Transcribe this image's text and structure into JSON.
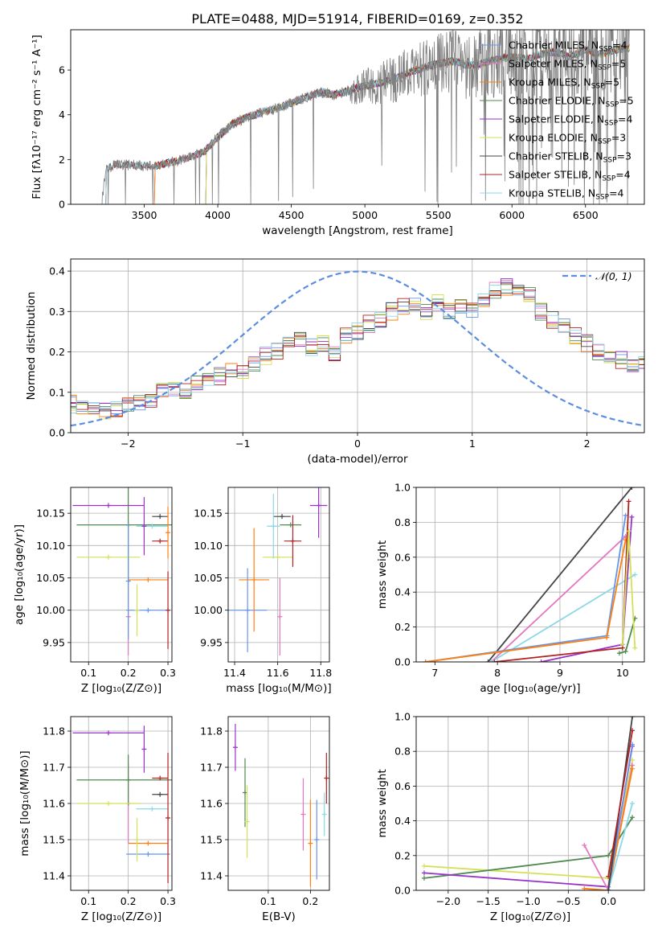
{
  "chart_data": [
    {
      "id": "spectrum",
      "type": "line",
      "title": "PLATE=0488, MJD=51914, FIBERID=0169, z=0.352",
      "xlabel": "wavelength [Angstrom, rest frame]",
      "ylabel": "Flux [fλ10⁻¹⁷ erg cm⁻² s⁻¹ A⁻¹]",
      "xlim": [
        3000,
        6900
      ],
      "ylim": [
        0,
        7.8
      ],
      "xticks": [
        "3500",
        "4000",
        "4500",
        "5000",
        "5500",
        "6000",
        "6500"
      ],
      "yticks": [
        "0",
        "2",
        "4",
        "6"
      ],
      "xtick_values": [
        3500,
        4000,
        4500,
        5000,
        5500,
        6000,
        6500
      ],
      "ytick_values": [
        0,
        2,
        4,
        6
      ],
      "grid": false,
      "legend_position": "top-right",
      "data_color": "#808080",
      "data_x": [
        3210,
        3240,
        3300,
        3400,
        3500,
        3600,
        3700,
        3800,
        3900,
        4000,
        4100,
        4200,
        4300,
        4400,
        4500,
        4600,
        4700,
        4800,
        4900,
        5000,
        5100,
        5200,
        5300,
        5400,
        5500,
        5600,
        5700,
        5800,
        5900,
        6000,
        6100,
        6200,
        6300,
        6400,
        6500,
        6600,
        6700,
        6800
      ],
      "data_y": [
        0.0,
        1.55,
        1.8,
        1.75,
        1.7,
        1.75,
        1.9,
        2.1,
        2.3,
        3.0,
        3.6,
        3.9,
        4.1,
        4.3,
        4.5,
        4.8,
        5.0,
        4.9,
        5.1,
        5.3,
        5.4,
        5.6,
        5.9,
        6.1,
        6.3,
        6.4,
        6.2,
        6.3,
        6.5,
        6.6,
        6.5,
        6.7,
        6.8,
        6.6,
        6.9,
        6.7,
        6.9,
        7.0
      ],
      "series": [
        {
          "name": "Chabrier MILES, N_SSP=4",
          "label": "Chabrier MILES, N",
          "sub": "SSP",
          "count": "=4",
          "color": "#6495ed",
          "x_start": 3550
        },
        {
          "name": "Salpeter MILES, N_SSP=5",
          "label": "Salpeter MILES, N",
          "sub": "SSP",
          "count": "=5",
          "color": "#e377c2",
          "x_start": 3550
        },
        {
          "name": "Kroupa MILES, N_SSP=5",
          "label": "Kroupa MILES, N",
          "sub": "SSP",
          "count": "=5",
          "color": "#ff7f0e",
          "x_start": 3550
        },
        {
          "name": "Chabrier ELODIE, N_SSP=5",
          "label": "Chabrier ELODIE, N",
          "sub": "SSP",
          "count": "=5",
          "color": "#4f8a4f",
          "x_start": 3900
        },
        {
          "name": "Salpeter ELODIE, N_SSP=4",
          "label": "Salpeter ELODIE, N",
          "sub": "SSP",
          "count": "=4",
          "color": "#9932cc",
          "x_start": 3900
        },
        {
          "name": "Kroupa ELODIE, N_SSP=3",
          "label": "Kroupa ELODIE, N",
          "sub": "SSP",
          "count": "=3",
          "color": "#d4e157",
          "x_start": 3900
        },
        {
          "name": "Chabrier STELIB, N_SSP=3",
          "label": "Chabrier STELIB, N",
          "sub": "SSP",
          "count": "=3",
          "color": "#444444",
          "x_start": 3220
        },
        {
          "name": "Salpeter STELIB, N_SSP=4",
          "label": "Salpeter STELIB, N",
          "sub": "SSP",
          "count": "=4",
          "color": "#b22222",
          "x_start": 3220
        },
        {
          "name": "Kroupa STELIB, N_SSP=4",
          "label": "Kroupa STELIB, N",
          "sub": "SSP",
          "count": "=4",
          "color": "#8ad8e8",
          "x_start": 3220
        }
      ]
    },
    {
      "id": "residuals",
      "type": "bar",
      "xlabel": "(data-model)/error",
      "ylabel": "Normed distribution",
      "xlim": [
        -2.5,
        2.5
      ],
      "ylim": [
        0,
        0.43
      ],
      "xticks": [
        "−2",
        "−1",
        "0",
        "1",
        "2"
      ],
      "xtick_values": [
        -2,
        -1,
        0,
        1,
        2
      ],
      "yticks": [
        "0.0",
        "0.1",
        "0.2",
        "0.3",
        "0.4"
      ],
      "ytick_values": [
        0,
        0.1,
        0.2,
        0.3,
        0.4
      ],
      "grid": true,
      "legend_position": "top-right",
      "curve": {
        "name": "N(0,1)",
        "label": "𝒩(0, 1)",
        "color": "#5b8ee0",
        "mean": 0,
        "sigma": 1
      },
      "bin_width": 0.1,
      "bin_start": -2.5,
      "hist_values": [
        0.07,
        0.065,
        0.06,
        0.055,
        0.06,
        0.065,
        0.07,
        0.08,
        0.1,
        0.11,
        0.1,
        0.12,
        0.13,
        0.14,
        0.15,
        0.15,
        0.17,
        0.19,
        0.2,
        0.22,
        0.23,
        0.21,
        0.22,
        0.2,
        0.24,
        0.25,
        0.27,
        0.28,
        0.3,
        0.31,
        0.32,
        0.3,
        0.32,
        0.3,
        0.31,
        0.3,
        0.33,
        0.35,
        0.36,
        0.35,
        0.34,
        0.3,
        0.28,
        0.26,
        0.24,
        0.22,
        0.2,
        0.19,
        0.18,
        0.17,
        0.17,
        0.16,
        0.15,
        0.14,
        0.13,
        0.11,
        0.1,
        0.1,
        0.09,
        0.08
      ],
      "hist_series_colors": [
        "#6495ed",
        "#e377c2",
        "#ff7f0e",
        "#4f8a4f",
        "#9932cc",
        "#d4e157",
        "#444444",
        "#b22222",
        "#8ad8e8"
      ]
    },
    {
      "id": "age_vs_Z",
      "type": "scatter",
      "xlabel": "Z [log₁₀(Z/Z⊙)]",
      "ylabel": "age  [log₁₀(age/yr)]",
      "xlim": [
        0.055,
        0.31
      ],
      "ylim": [
        9.92,
        10.19
      ],
      "xticks": [
        "0.1",
        "0.2",
        "0.3"
      ],
      "xtick_values": [
        0.1,
        0.2,
        0.3
      ],
      "yticks": [
        "9.95",
        "10.00",
        "10.05",
        "10.10",
        "10.15"
      ],
      "ytick_values": [
        9.95,
        10.0,
        10.05,
        10.1,
        10.15
      ],
      "grid": true,
      "points": [
        {
          "x": 0.25,
          "y": 10.0,
          "xerr": 0.055,
          "yerr": 0.0,
          "color": "#6495ed"
        },
        {
          "x": 0.2,
          "y": 9.99,
          "xerr": 0.0,
          "yerr": 0.06,
          "color": "#e377c2"
        },
        {
          "x": 0.25,
          "y": 10.047,
          "xerr": 0.05,
          "yerr": 0.0,
          "color": "#ff7f0e"
        },
        {
          "x": 0.2,
          "y": 10.132,
          "xerr": 0.13,
          "yerr": 0.09,
          "color": "#4f8a4f"
        },
        {
          "x": 0.15,
          "y": 10.162,
          "xerr": 0.09,
          "yerr": 0.0,
          "color": "#9932cc"
        },
        {
          "x": 0.15,
          "y": 10.082,
          "xerr": 0.08,
          "yerr": 0.0,
          "color": "#d4e157"
        },
        {
          "x": 0.28,
          "y": 10.145,
          "xerr": 0.02,
          "yerr": 0.0,
          "color": "#444444"
        },
        {
          "x": 0.28,
          "y": 10.107,
          "xerr": 0.02,
          "yerr": 0.0,
          "color": "#b22222"
        },
        {
          "x": 0.26,
          "y": 10.13,
          "xerr": 0.04,
          "yerr": 0.0,
          "color": "#8ad8e8"
        },
        {
          "x": 0.2,
          "y": 10.045,
          "xerr": 0.0,
          "yerr": 0.09,
          "color": "#6495ed"
        },
        {
          "x": 0.222,
          "y": 10.0,
          "xerr": 0.0,
          "yerr": 0.04,
          "color": "#d4e157"
        },
        {
          "x": 0.24,
          "y": 10.13,
          "xerr": 0.0,
          "yerr": 0.045,
          "color": "#9932cc"
        },
        {
          "x": 0.3,
          "y": 10.0,
          "xerr": 0.0,
          "yerr": 0.06,
          "color": "#b22222"
        },
        {
          "x": 0.3,
          "y": 10.12,
          "xerr": 0.0,
          "yerr": 0.04,
          "color": "#ff7f0e"
        }
      ]
    },
    {
      "id": "age_vs_mass",
      "type": "scatter",
      "xlabel": "mass [log₁₀(M/M⊙)]",
      "ylabel": "",
      "xlim": [
        11.37,
        11.84
      ],
      "ylim": [
        9.92,
        10.19
      ],
      "xticks": [
        "11.4",
        "11.6",
        "11.8"
      ],
      "xtick_values": [
        11.4,
        11.6,
        11.8
      ],
      "yticks": [
        "9.95",
        "10.00",
        "10.05",
        "10.10",
        "10.15"
      ],
      "ytick_values": [
        9.95,
        10.0,
        10.05,
        10.1,
        10.15
      ],
      "grid": true,
      "points": [
        {
          "x": 11.46,
          "y": 10.0,
          "xerr": 0.09,
          "yerr": 0.065,
          "color": "#6495ed"
        },
        {
          "x": 11.61,
          "y": 9.99,
          "xerr": 0.0,
          "yerr": 0.06,
          "color": "#e377c2"
        },
        {
          "x": 11.49,
          "y": 10.047,
          "xerr": 0.07,
          "yerr": 0.08,
          "color": "#ff7f0e"
        },
        {
          "x": 11.66,
          "y": 10.132,
          "xerr": 0.05,
          "yerr": 0.0,
          "color": "#4f8a4f"
        },
        {
          "x": 11.79,
          "y": 10.162,
          "xerr": 0.04,
          "yerr": 0.05,
          "color": "#9932cc"
        },
        {
          "x": 11.6,
          "y": 10.082,
          "xerr": 0.07,
          "yerr": 0.0,
          "color": "#d4e157"
        },
        {
          "x": 11.62,
          "y": 10.145,
          "xerr": 0.04,
          "yerr": 0.0,
          "color": "#444444"
        },
        {
          "x": 11.67,
          "y": 10.107,
          "xerr": 0.04,
          "yerr": 0.04,
          "color": "#b22222"
        },
        {
          "x": 11.58,
          "y": 10.13,
          "xerr": 0.03,
          "yerr": 0.05,
          "color": "#8ad8e8"
        }
      ]
    },
    {
      "id": "weight_vs_age",
      "type": "line",
      "xlabel": "age  [log₁₀(age/yr)]",
      "ylabel": "mass weight",
      "xlim": [
        6.7,
        10.35
      ],
      "ylim": [
        0,
        1.0
      ],
      "xticks": [
        "7",
        "8",
        "9",
        "10"
      ],
      "xtick_values": [
        7,
        8,
        9,
        10
      ],
      "yticks": [
        "0.0",
        "0.2",
        "0.4",
        "0.6",
        "0.8",
        "1.0"
      ],
      "ytick_values": [
        0,
        0.2,
        0.4,
        0.6,
        0.8,
        1.0
      ],
      "grid": true,
      "series": [
        {
          "color": "#444444",
          "x": [
            7.85,
            10.15
          ],
          "y": [
            0.0,
            1.0
          ]
        },
        {
          "color": "#e377c2",
          "x": [
            7.9,
            10.05
          ],
          "y": [
            0.0,
            0.72
          ]
        },
        {
          "color": "#8ad8e8",
          "x": [
            7.9,
            10.2
          ],
          "y": [
            0.0,
            0.5
          ]
        },
        {
          "color": "#6495ed",
          "x": [
            6.85,
            9.75,
            10.05
          ],
          "y": [
            0.0,
            0.15,
            0.84
          ]
        },
        {
          "color": "#ff7f0e",
          "x": [
            6.85,
            9.75,
            10.05
          ],
          "y": [
            0.0,
            0.14,
            0.7
          ]
        },
        {
          "color": "#9932cc",
          "x": [
            8.7,
            10.0,
            10.15
          ],
          "y": [
            0.0,
            0.1,
            0.83
          ]
        },
        {
          "color": "#b22222",
          "x": [
            7.95,
            10.0,
            10.1
          ],
          "y": [
            0.0,
            0.08,
            0.92
          ]
        },
        {
          "color": "#4f8a4f",
          "x": [
            9.95,
            10.05,
            10.2
          ],
          "y": [
            0.05,
            0.06,
            0.25
          ]
        },
        {
          "color": "#d4e157",
          "x": [
            10.0,
            10.1,
            10.2
          ],
          "y": [
            0.1,
            0.75,
            0.08
          ]
        }
      ]
    },
    {
      "id": "mass_vs_Z",
      "type": "scatter",
      "xlabel": "Z [log₁₀(Z/Z⊙)]",
      "ylabel": "mass [log₁₀(M/M⊙)]",
      "xlim": [
        0.055,
        0.31
      ],
      "ylim": [
        11.36,
        11.84
      ],
      "xticks": [
        "0.1",
        "0.2",
        "0.3"
      ],
      "xtick_values": [
        0.1,
        0.2,
        0.3
      ],
      "yticks": [
        "11.4",
        "11.5",
        "11.6",
        "11.7",
        "11.8"
      ],
      "ytick_values": [
        11.4,
        11.5,
        11.6,
        11.7,
        11.8
      ],
      "grid": true,
      "points": [
        {
          "x": 0.25,
          "y": 11.46,
          "xerr": 0.055,
          "yerr": 0.0,
          "color": "#6495ed"
        },
        {
          "x": 0.2,
          "y": 11.6,
          "xerr": 0.0,
          "yerr": 0.11,
          "color": "#e377c2"
        },
        {
          "x": 0.25,
          "y": 11.49,
          "xerr": 0.05,
          "yerr": 0.0,
          "color": "#ff7f0e"
        },
        {
          "x": 0.2,
          "y": 11.665,
          "xerr": 0.13,
          "yerr": 0.07,
          "color": "#4f8a4f"
        },
        {
          "x": 0.15,
          "y": 11.795,
          "xerr": 0.09,
          "yerr": 0.0,
          "color": "#9932cc"
        },
        {
          "x": 0.15,
          "y": 11.6,
          "xerr": 0.08,
          "yerr": 0.0,
          "color": "#d4e157"
        },
        {
          "x": 0.28,
          "y": 11.625,
          "xerr": 0.02,
          "yerr": 0.0,
          "color": "#444444"
        },
        {
          "x": 0.28,
          "y": 11.67,
          "xerr": 0.02,
          "yerr": 0.0,
          "color": "#b22222"
        },
        {
          "x": 0.26,
          "y": 11.585,
          "xerr": 0.04,
          "yerr": 0.0,
          "color": "#8ad8e8"
        },
        {
          "x": 0.24,
          "y": 11.75,
          "xerr": 0.0,
          "yerr": 0.065,
          "color": "#9932cc"
        },
        {
          "x": 0.3,
          "y": 11.56,
          "xerr": 0.0,
          "yerr": 0.18,
          "color": "#b22222"
        },
        {
          "x": 0.222,
          "y": 11.5,
          "xerr": 0.0,
          "yerr": 0.06,
          "color": "#d4e157"
        }
      ]
    },
    {
      "id": "mass_vs_EBV",
      "type": "scatter",
      "xlabel": "E(B-V)",
      "ylabel": "",
      "xlim": [
        0.005,
        0.245
      ],
      "ylim": [
        11.36,
        11.84
      ],
      "xticks": [
        "0.1",
        "0.2"
      ],
      "xtick_values": [
        0.1,
        0.2
      ],
      "yticks": [
        "11.4",
        "11.5",
        "11.6",
        "11.7",
        "11.8"
      ],
      "ytick_values": [
        11.4,
        11.5,
        11.6,
        11.7,
        11.8
      ],
      "grid": true,
      "points": [
        {
          "x": 0.022,
          "y": 11.755,
          "xerr": 0.0,
          "yerr": 0.065,
          "color": "#9932cc"
        },
        {
          "x": 0.045,
          "y": 11.63,
          "xerr": 0.0,
          "yerr": 0.095,
          "color": "#4f8a4f"
        },
        {
          "x": 0.05,
          "y": 11.55,
          "xerr": 0.0,
          "yerr": 0.1,
          "color": "#d4e157"
        },
        {
          "x": 0.183,
          "y": 11.57,
          "xerr": 0.0,
          "yerr": 0.1,
          "color": "#e377c2"
        },
        {
          "x": 0.2,
          "y": 11.49,
          "xerr": 0.0,
          "yerr": 0.12,
          "color": "#ff7f0e"
        },
        {
          "x": 0.215,
          "y": 11.5,
          "xerr": 0.0,
          "yerr": 0.11,
          "color": "#6495ed"
        },
        {
          "x": 0.233,
          "y": 11.57,
          "xerr": 0.0,
          "yerr": 0.06,
          "color": "#8ad8e8"
        },
        {
          "x": 0.238,
          "y": 11.67,
          "xerr": 0.0,
          "yerr": 0.07,
          "color": "#b22222"
        }
      ]
    },
    {
      "id": "weight_vs_Z",
      "type": "line",
      "xlabel": "Z [log₁₀(Z/Z⊙)]",
      "ylabel": "mass weight",
      "xlim": [
        -2.4,
        0.45
      ],
      "ylim": [
        0,
        1.0
      ],
      "xticks": [
        "−2.0",
        "−1.5",
        "−1.0",
        "−0.5",
        "0.0"
      ],
      "xtick_values": [
        -2.0,
        -1.5,
        -1.0,
        -0.5,
        0.0
      ],
      "yticks": [
        "0.0",
        "0.2",
        "0.4",
        "0.6",
        "0.8",
        "1.0"
      ],
      "ytick_values": [
        0,
        0.2,
        0.4,
        0.6,
        0.8,
        1.0
      ],
      "grid": true,
      "series": [
        {
          "color": "#d4e157",
          "x": [
            -2.3,
            0.0,
            0.3
          ],
          "y": [
            0.14,
            0.07,
            0.75
          ]
        },
        {
          "color": "#4f8a4f",
          "x": [
            -2.3,
            0.0,
            0.3
          ],
          "y": [
            0.07,
            0.2,
            0.42
          ]
        },
        {
          "color": "#9932cc",
          "x": [
            -2.3,
            0.0,
            0.3
          ],
          "y": [
            0.1,
            0.02,
            0.83
          ]
        },
        {
          "color": "#e377c2",
          "x": [
            -0.3,
            0.0,
            0.3
          ],
          "y": [
            0.26,
            0.0,
            0.72
          ]
        },
        {
          "color": "#ff7f0e",
          "x": [
            -0.3,
            0.0,
            0.3
          ],
          "y": [
            0.01,
            0.0,
            0.7
          ]
        },
        {
          "color": "#6495ed",
          "x": [
            0.0,
            0.3
          ],
          "y": [
            0.0,
            0.84
          ]
        },
        {
          "color": "#8ad8e8",
          "x": [
            0.0,
            0.3
          ],
          "y": [
            0.0,
            0.5
          ]
        },
        {
          "color": "#444444",
          "x": [
            0.0,
            0.3
          ],
          "y": [
            0.0,
            1.0
          ]
        },
        {
          "color": "#b22222",
          "x": [
            0.0,
            0.3
          ],
          "y": [
            0.08,
            0.92
          ]
        }
      ]
    }
  ]
}
